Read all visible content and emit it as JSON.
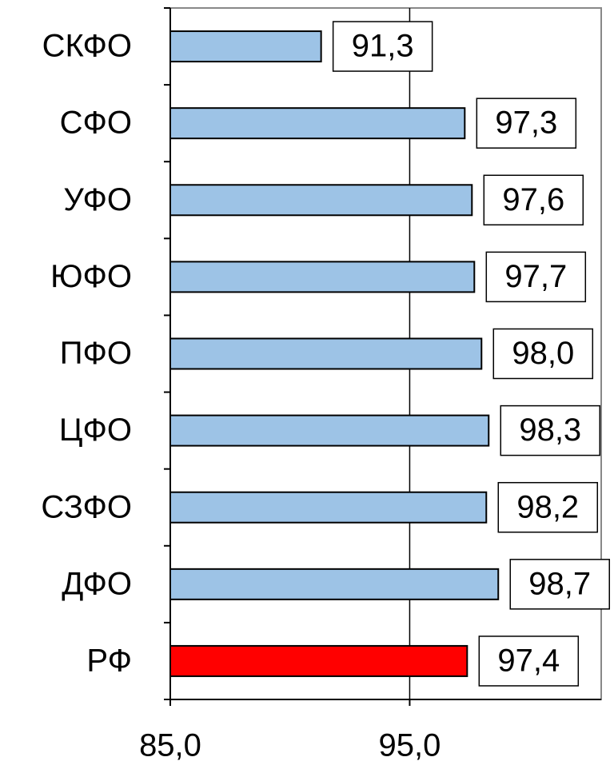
{
  "chart_data": {
    "type": "bar",
    "orientation": "horizontal",
    "categories": [
      "СКФО",
      "СФО",
      "УФО",
      "ЮФО",
      "ПФО",
      "ЦФО",
      "СЗФО",
      "ДФО",
      "РФ"
    ],
    "values": [
      91.3,
      97.3,
      97.6,
      97.7,
      98.0,
      98.3,
      98.2,
      98.7,
      97.4
    ],
    "value_labels": [
      "91,3",
      "97,3",
      "97,6",
      "97,7",
      "98,0",
      "98,3",
      "98,2",
      "98,7",
      "97,4"
    ],
    "colors": [
      "#9dc3e6",
      "#9dc3e6",
      "#9dc3e6",
      "#9dc3e6",
      "#9dc3e6",
      "#9dc3e6",
      "#9dc3e6",
      "#9dc3e6",
      "#ff0000"
    ],
    "xlim": [
      85,
      103
    ],
    "xticks": [
      {
        "value": 85,
        "label": "85,0"
      },
      {
        "value": 95,
        "label": "95,0"
      }
    ],
    "grid": true
  }
}
